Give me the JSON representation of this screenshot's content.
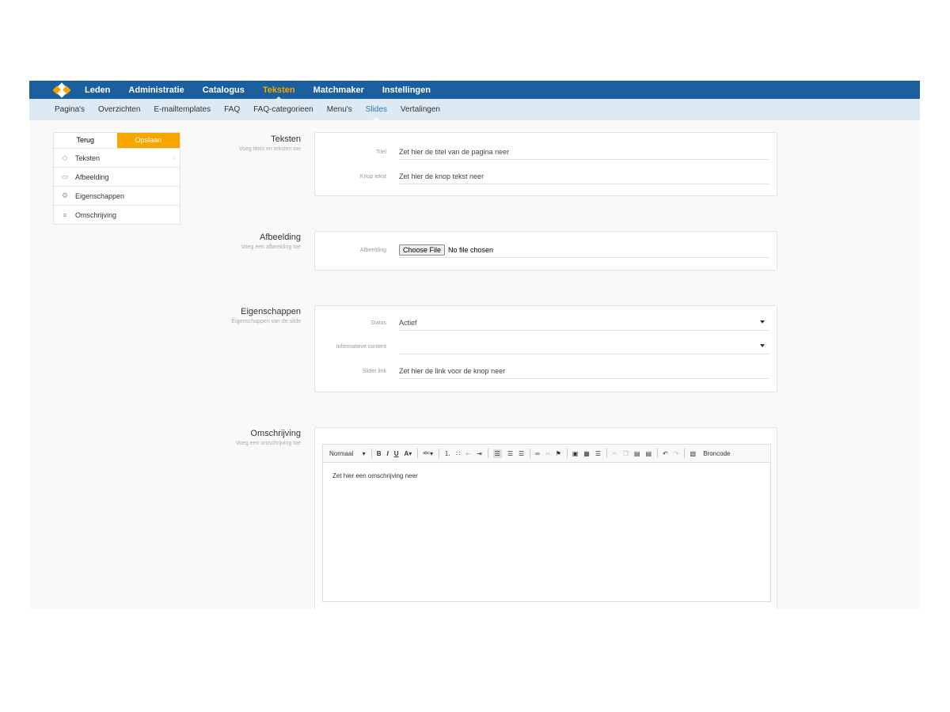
{
  "colors": {
    "nav": "#1b5f9e",
    "accent": "#f7a600",
    "subnav": "#dde9f3",
    "active_sub": "#2a7bc0"
  },
  "nav": {
    "items": [
      "Leden",
      "Administratie",
      "Catalogus",
      "Teksten",
      "Matchmaker",
      "Instellingen"
    ],
    "active": "Teksten"
  },
  "subnav": {
    "items": [
      "Pagina's",
      "Overzichten",
      "E-mailtemplates",
      "FAQ",
      "FAQ-categorieen",
      "Menu's",
      "Slides",
      "Vertalingen"
    ],
    "active": "Slides"
  },
  "sidebar": {
    "back": "Terug",
    "save": "Opslaan",
    "items": [
      {
        "label": "Teksten",
        "icon": "tag-icon"
      },
      {
        "label": "Afbeelding",
        "icon": "image-icon"
      },
      {
        "label": "Eigenschappen",
        "icon": "gears-icon"
      },
      {
        "label": "Omschrijving",
        "icon": "align-left-icon"
      }
    ]
  },
  "sections": {
    "teksten": {
      "title": "Teksten",
      "subtitle": "Voeg titels en teksten toe",
      "fields": [
        {
          "label": "Titel",
          "placeholder": "Zet hier de titel van de pagina neer"
        },
        {
          "label": "Knop tekst",
          "placeholder": "Zet hier de knop tekst neer"
        }
      ]
    },
    "afbeelding": {
      "title": "Afbeelding",
      "subtitle": "Voeg een afbeelding toe",
      "label": "Afbeelding",
      "button": "Choose File",
      "status": "No file chosen"
    },
    "eigenschappen": {
      "title": "Eigenschappen",
      "subtitle": "Eigenschappen van de slide",
      "status_label": "Status",
      "status_value": "Actief",
      "info_label": "Informatieve content",
      "info_value": "",
      "link_label": "Slider link",
      "link_placeholder": "Zet hier de link voor de knop neer"
    },
    "omschrijving": {
      "title": "Omschrijving",
      "subtitle": "Voeg een omschrijving toe",
      "format": "Normaal",
      "source": "Broncode",
      "placeholder": "Zet hier een omschrijving neer"
    }
  }
}
